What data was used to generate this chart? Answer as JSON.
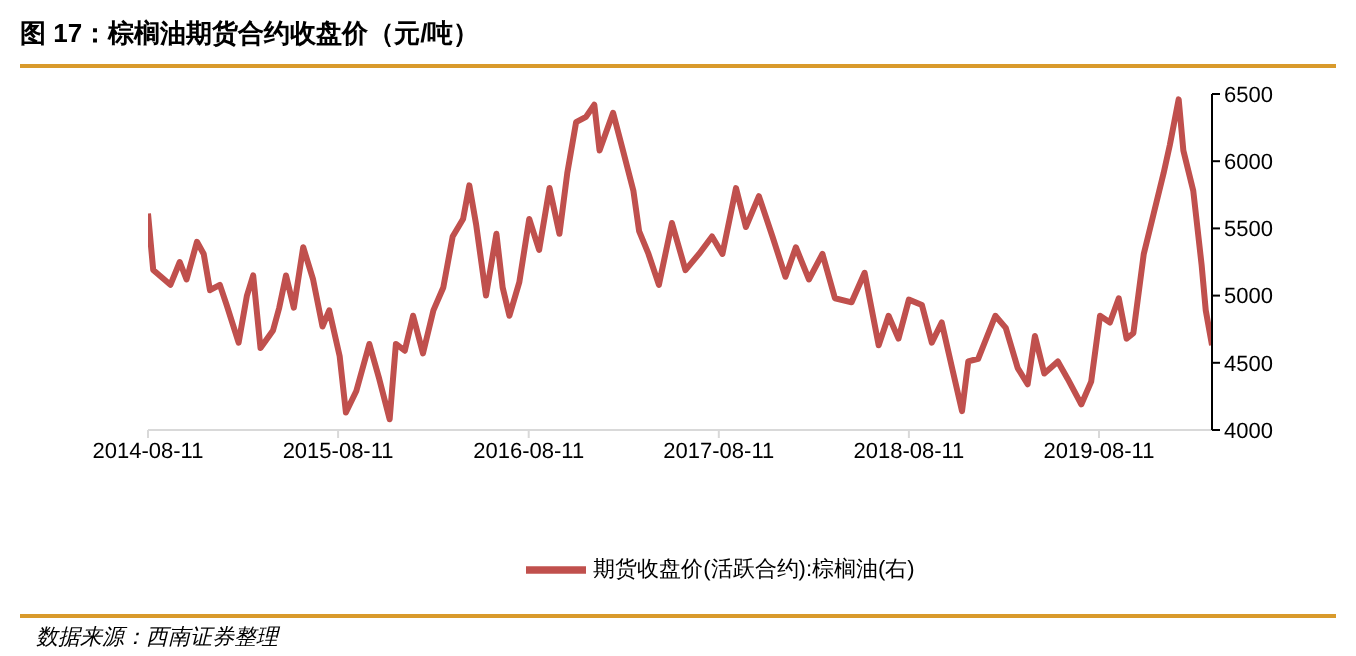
{
  "chart_data": {
    "type": "line",
    "title": "图 17：棕榈油期货合约收盘价（元/吨）",
    "x": [
      "2014-08-11",
      "2014-08-21",
      "2014-09-23",
      "2014-10-11",
      "2014-10-24",
      "2014-11-13",
      "2014-11-26",
      "2014-12-08",
      "2014-12-27",
      "2015-01-09",
      "2015-02-01",
      "2015-02-17",
      "2015-03-01",
      "2015-03-15",
      "2015-04-08",
      "2015-04-20",
      "2015-05-03",
      "2015-05-18",
      "2015-06-05",
      "2015-06-24",
      "2015-07-12",
      "2015-07-25",
      "2015-08-14",
      "2015-08-26",
      "2015-09-15",
      "2015-10-10",
      "2015-10-29",
      "2015-11-18",
      "2015-11-30",
      "2015-12-17",
      "2016-01-02",
      "2016-01-21",
      "2016-02-10",
      "2016-02-29",
      "2016-03-18",
      "2016-04-07",
      "2016-04-19",
      "2016-05-02",
      "2016-05-21",
      "2016-06-10",
      "2016-06-22",
      "2016-07-05",
      "2016-07-24",
      "2016-08-12",
      "2016-08-31",
      "2016-09-20",
      "2016-10-09",
      "2016-10-24",
      "2016-11-10",
      "2016-11-29",
      "2016-12-15",
      "2016-12-25",
      "2017-01-20",
      "2017-02-08",
      "2017-02-28",
      "2017-03-11",
      "2017-03-29",
      "2017-04-18",
      "2017-05-13",
      "2017-06-08",
      "2017-07-04",
      "2017-07-29",
      "2017-08-18",
      "2017-09-13",
      "2017-10-02",
      "2017-10-27",
      "2017-11-22",
      "2017-12-17",
      "2018-01-06",
      "2018-01-31",
      "2018-02-26",
      "2018-03-22",
      "2018-04-23",
      "2018-05-18",
      "2018-06-14",
      "2018-07-03",
      "2018-07-22",
      "2018-08-11",
      "2018-09-05",
      "2018-09-24",
      "2018-10-13",
      "2018-11-02",
      "2018-11-21",
      "2018-12-03",
      "2018-12-22",
      "2019-01-24",
      "2019-02-13",
      "2019-03-08",
      "2019-03-27",
      "2019-04-10",
      "2019-04-28",
      "2019-05-24",
      "2019-06-12",
      "2019-07-08",
      "2019-07-27",
      "2019-08-13",
      "2019-09-01",
      "2019-09-18",
      "2019-10-03",
      "2019-10-16",
      "2019-11-05",
      "2019-11-24",
      "2019-12-13",
      "2019-12-25",
      "2020-01-11",
      "2020-01-20",
      "2020-02-08",
      "2020-02-24",
      "2020-03-03",
      "2020-03-15"
    ],
    "series": [
      {
        "name": "期货收盘价(活跃合约):棕榈油(右)",
        "color": "#c0504d",
        "values": [
          5610,
          5190,
          5080,
          5250,
          5120,
          5400,
          5310,
          5040,
          5080,
          4930,
          4650,
          5000,
          5150,
          4610,
          4740,
          4910,
          5150,
          4910,
          5360,
          5120,
          4770,
          4890,
          4550,
          4130,
          4290,
          4640,
          4380,
          4080,
          4640,
          4590,
          4850,
          4570,
          4890,
          5060,
          5440,
          5570,
          5820,
          5530,
          5000,
          5460,
          5060,
          4850,
          5100,
          5570,
          5340,
          5800,
          5460,
          5910,
          6290,
          6330,
          6420,
          6080,
          6360,
          6080,
          5780,
          5480,
          5310,
          5080,
          5540,
          5190,
          5310,
          5440,
          5310,
          5800,
          5510,
          5740,
          5440,
          5140,
          5360,
          5120,
          5310,
          4980,
          4950,
          5170,
          4630,
          4850,
          4680,
          4970,
          4930,
          4650,
          4800,
          4460,
          4140,
          4510,
          4530,
          4850,
          4760,
          4460,
          4340,
          4700,
          4420,
          4510,
          4380,
          4190,
          4360,
          4850,
          4800,
          4980,
          4680,
          4720,
          5310,
          5610,
          5910,
          6120,
          6460,
          6080,
          5780,
          5230,
          4890,
          4630
        ]
      }
    ],
    "xlim": [
      "2014-08-11",
      "2020-03-15"
    ],
    "xticks": [
      "2014-08-11",
      "2015-08-11",
      "2016-08-11",
      "2017-08-11",
      "2018-08-11",
      "2019-08-11"
    ],
    "ylim": [
      4000,
      6500
    ],
    "yticks": [
      4000,
      4500,
      5000,
      5500,
      6000,
      6500
    ],
    "legend": "bottom",
    "annotations": [
      "数据来源：西南证券整理"
    ]
  }
}
